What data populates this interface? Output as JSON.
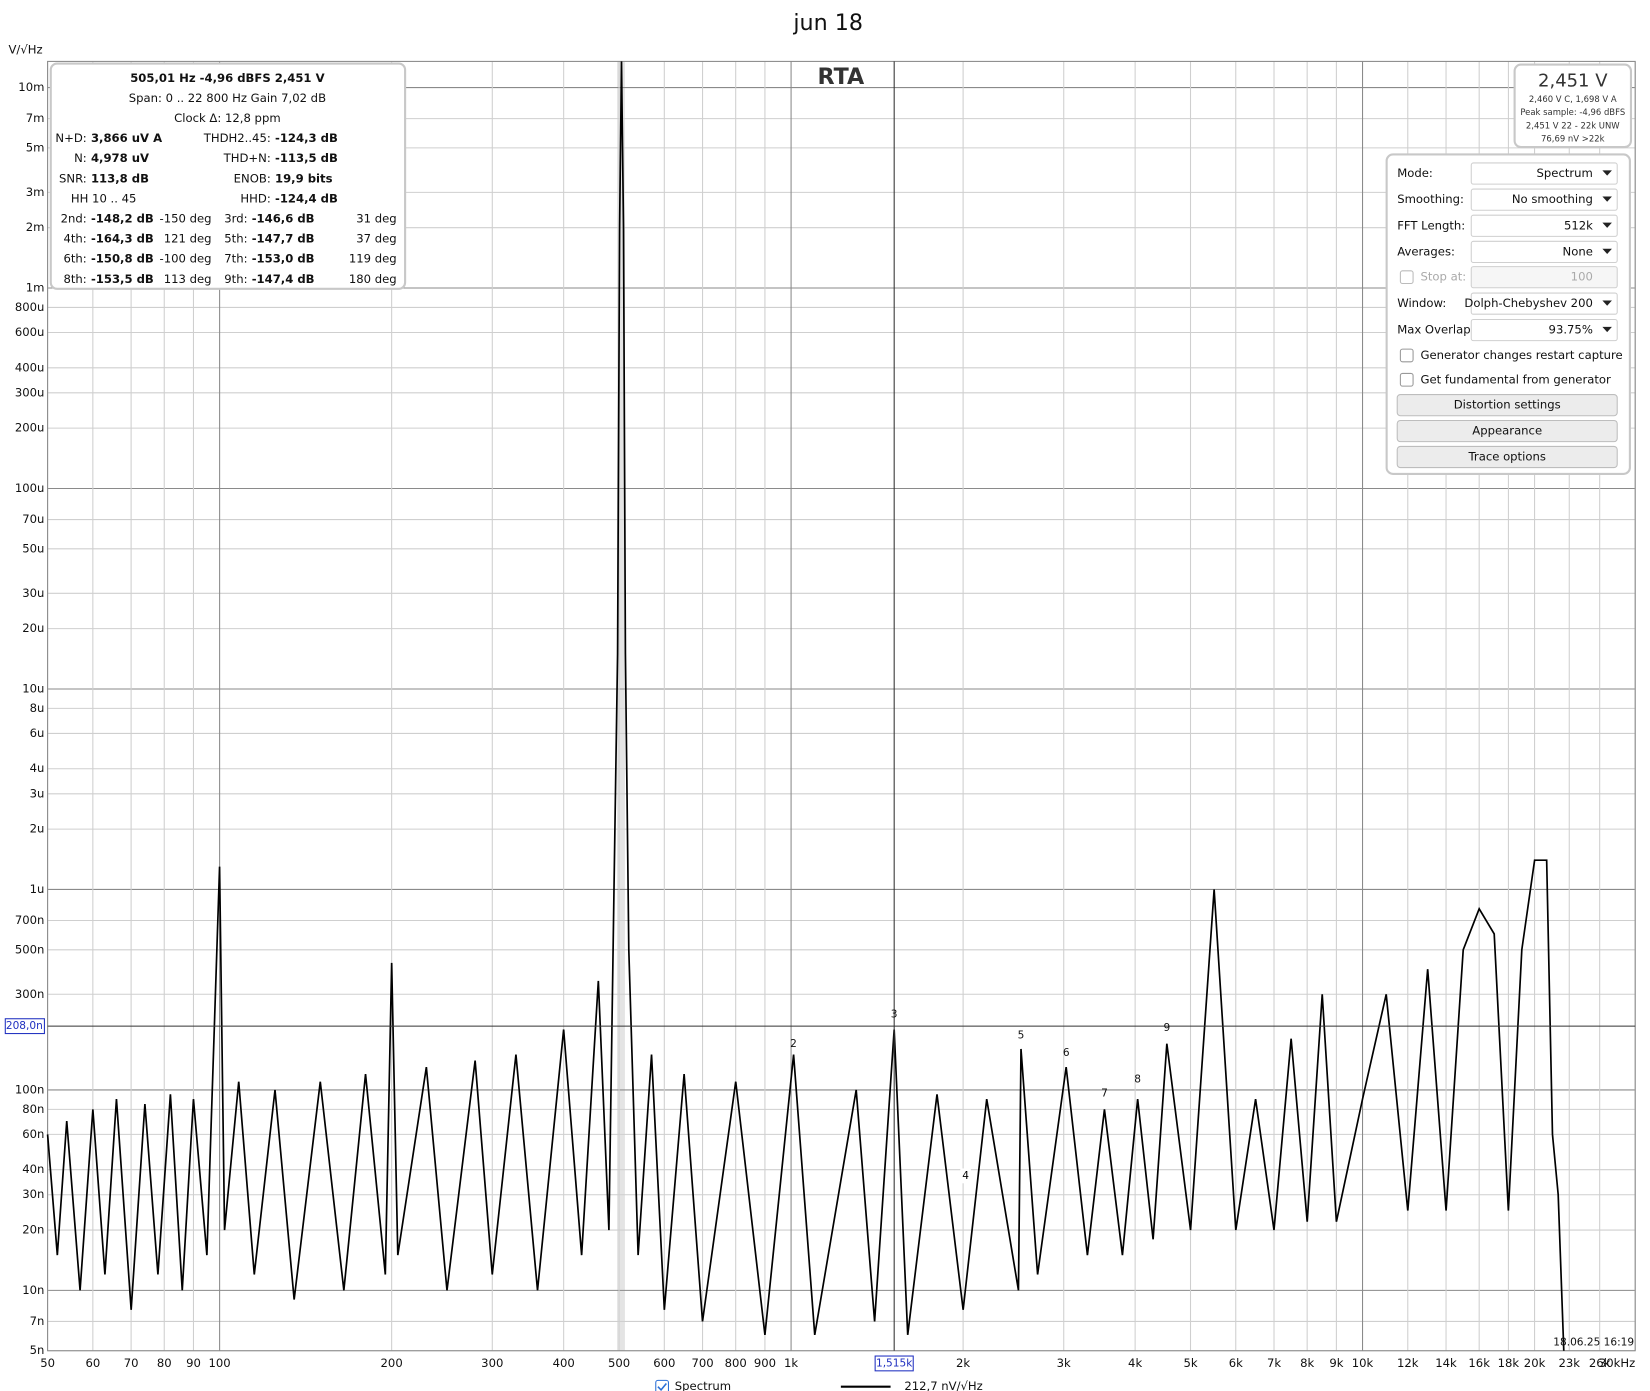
{
  "chart_data": {
    "type": "line",
    "title": "jun 18",
    "annotation": "RTA",
    "y_label": "V/√Hz",
    "x_scale": "log",
    "y_scale": "log",
    "grid": true,
    "xlim": [
      50,
      30000
    ],
    "ylim": [
      5e-09,
      0.0135
    ],
    "xticks": [
      50,
      60,
      70,
      80,
      90,
      100,
      200,
      300,
      400,
      500,
      600,
      700,
      800,
      900,
      {
        "value": 1000,
        "label": "1k"
      },
      {
        "value": 2000,
        "label": "2k"
      },
      {
        "value": 3000,
        "label": "3k"
      },
      {
        "value": 4000,
        "label": "4k"
      },
      {
        "value": 5000,
        "label": "5k"
      },
      {
        "value": 6000,
        "label": "6k"
      },
      {
        "value": 7000,
        "label": "7k"
      },
      {
        "value": 8000,
        "label": "8k"
      },
      {
        "value": 9000,
        "label": "9k"
      },
      {
        "value": 10000,
        "label": "10k"
      },
      {
        "value": 12000,
        "label": "12k"
      },
      {
        "value": 14000,
        "label": "14k"
      },
      {
        "value": 16000,
        "label": "16k"
      },
      {
        "value": 18000,
        "label": "18k"
      },
      {
        "value": 20000,
        "label": "20k"
      },
      {
        "value": 23000,
        "label": "23k"
      },
      {
        "value": 26000,
        "label": "26k"
      },
      {
        "value": 30000,
        "label": "30kHz"
      }
    ],
    "yticks": [
      {
        "value": 0.01,
        "label": "10m"
      },
      {
        "value": 0.007,
        "label": "7m"
      },
      {
        "value": 0.005,
        "label": "5m"
      },
      {
        "value": 0.003,
        "label": "3m"
      },
      {
        "value": 0.002,
        "label": "2m"
      },
      {
        "value": 0.001,
        "label": "1m"
      },
      {
        "value": 0.0008,
        "label": "800u"
      },
      {
        "value": 0.0006,
        "label": "600u"
      },
      {
        "value": 0.0004,
        "label": "400u"
      },
      {
        "value": 0.0003,
        "label": "300u"
      },
      {
        "value": 0.0002,
        "label": "200u"
      },
      {
        "value": 0.0001,
        "label": "100u"
      },
      {
        "value": 7e-05,
        "label": "70u"
      },
      {
        "value": 5e-05,
        "label": "50u"
      },
      {
        "value": 3e-05,
        "label": "30u"
      },
      {
        "value": 2e-05,
        "label": "20u"
      },
      {
        "value": 1e-05,
        "label": "10u"
      },
      {
        "value": 8e-06,
        "label": "8u"
      },
      {
        "value": 6e-06,
        "label": "6u"
      },
      {
        "value": 4e-06,
        "label": "4u"
      },
      {
        "value": 3e-06,
        "label": "3u"
      },
      {
        "value": 2e-06,
        "label": "2u"
      },
      {
        "value": 1e-06,
        "label": "1u"
      },
      {
        "value": 7e-07,
        "label": "700n"
      },
      {
        "value": 5e-07,
        "label": "500n"
      },
      {
        "value": 3e-07,
        "label": "300n"
      },
      {
        "value": 1e-07,
        "label": "100n"
      },
      {
        "value": 8e-08,
        "label": "80n"
      },
      {
        "value": 6e-08,
        "label": "60n"
      },
      {
        "value": 4e-08,
        "label": "40n"
      },
      {
        "value": 3e-08,
        "label": "30n"
      },
      {
        "value": 2e-08,
        "label": "20n"
      },
      {
        "value": 1e-08,
        "label": "10n"
      },
      {
        "value": 7e-09,
        "label": "7n"
      },
      {
        "value": 5e-09,
        "label": "5n"
      }
    ],
    "series": [
      {
        "name": "Spectrum",
        "color": "#000000",
        "x": [
          50,
          52,
          54,
          57,
          60,
          63,
          66,
          70,
          74,
          78,
          82,
          86,
          90,
          95,
          100,
          102,
          108,
          115,
          125,
          135,
          150,
          165,
          180,
          195,
          200,
          205,
          230,
          250,
          280,
          300,
          330,
          360,
          400,
          430,
          460,
          480,
          490,
          497,
          501,
          505,
          509,
          513,
          520,
          540,
          570,
          600,
          650,
          700,
          800,
          900,
          1010,
          1100,
          1300,
          1400,
          1515,
          1600,
          1800,
          2000,
          2200,
          2500,
          2525,
          2700,
          3030,
          3300,
          3535,
          3800,
          4040,
          4300,
          4545,
          5000,
          5500,
          6000,
          6500,
          7000,
          7500,
          8000,
          8500,
          9000,
          10000,
          11000,
          12000,
          13000,
          14000,
          15000,
          16000,
          17000,
          18000,
          19000,
          20000,
          21000,
          21500,
          22000,
          22500
        ],
        "values": [
          6e-08,
          1.5e-08,
          7e-08,
          1e-08,
          8e-08,
          1.2e-08,
          9e-08,
          8e-09,
          8.5e-08,
          1.2e-08,
          9.5e-08,
          1e-08,
          9e-08,
          1.5e-08,
          1.3e-06,
          2e-08,
          1.1e-07,
          1.2e-08,
          1e-07,
          9e-09,
          1.1e-07,
          1e-08,
          1.2e-07,
          1.2e-08,
          4.3e-07,
          1.5e-08,
          1.3e-07,
          1e-08,
          1.4e-07,
          1.2e-08,
          1.5e-07,
          1e-08,
          2e-07,
          1.5e-08,
          3.5e-07,
          2e-08,
          1e-06,
          1.5e-05,
          0.002,
          0.0135,
          0.002,
          1.5e-05,
          5e-07,
          1.5e-08,
          1.5e-07,
          8e-09,
          1.2e-07,
          7e-09,
          1.1e-07,
          6e-09,
          1.5e-07,
          6e-09,
          1e-07,
          7e-09,
          2e-07,
          6e-09,
          9.5e-08,
          8e-09,
          9e-08,
          1e-08,
          1.6e-07,
          1.2e-08,
          1.3e-07,
          1.5e-08,
          8e-08,
          1.5e-08,
          9e-08,
          1.8e-08,
          1.7e-07,
          2e-08,
          1e-06,
          2e-08,
          9e-08,
          2e-08,
          1.8e-07,
          2.2e-08,
          3e-07,
          2.2e-08,
          9e-08,
          3e-07,
          2.5e-08,
          4e-07,
          2.5e-08,
          5e-07,
          8e-07,
          6e-07,
          2.5e-08,
          5e-07,
          1.4e-06,
          1.4e-06,
          6e-08,
          3e-08,
          5e-09
        ]
      }
    ],
    "markers": [
      {
        "label": "2",
        "x": 1010,
        "y": 1.5e-07
      },
      {
        "label": "3",
        "x": 1515,
        "y": 2.1e-07
      },
      {
        "label": "4",
        "x": 2020,
        "y": 3.3e-08
      },
      {
        "label": "5",
        "x": 2525,
        "y": 1.65e-07
      },
      {
        "label": "6",
        "x": 3030,
        "y": 1.35e-07
      },
      {
        "label": "7",
        "x": 3535,
        "y": 8.5e-08
      },
      {
        "label": "8",
        "x": 4040,
        "y": 1e-07
      },
      {
        "label": "9",
        "x": 4545,
        "y": 1.8e-07
      }
    ],
    "cursor_y": {
      "value": 2.08e-07,
      "label": "208,0n"
    },
    "cursor_x": {
      "value": 1515,
      "label": "1,515k"
    },
    "legend_readout": "212,7 nV/√Hz",
    "timestamp": "18.06.25 16:19"
  },
  "info_panel": {
    "header": [
      "505,01 Hz  -4,96 dBFS  2,451 V",
      "Span: 0 .. 22 800 Hz   Gain 7,02 dB",
      "Clock Δ: 12,8 ppm"
    ],
    "stats": [
      {
        "label": "N+D:",
        "value": "3,866 uV A"
      },
      {
        "label": "THDH2..45:",
        "value": "-124,3 dB"
      },
      {
        "label": "N:",
        "value": "4,978 uV"
      },
      {
        "label": "THD+N:",
        "value": "-113,5 dB"
      },
      {
        "label": "SNR:",
        "value": "113,8 dB"
      },
      {
        "label": "ENOB:",
        "value": "19,9 bits"
      },
      {
        "label": "HH 10 .. 45",
        "value": ""
      },
      {
        "label": "HHD:",
        "value": "-124,4 dB"
      }
    ],
    "harmonics": [
      {
        "label": "2nd:",
        "value": "-148,2 dB",
        "phase": "-150 deg"
      },
      {
        "label": "3rd:",
        "value": "-146,6 dB",
        "phase": "31 deg"
      },
      {
        "label": "4th:",
        "value": "-164,3 dB",
        "phase": "121 deg"
      },
      {
        "label": "5th:",
        "value": "-147,7 dB",
        "phase": "37 deg"
      },
      {
        "label": "6th:",
        "value": "-150,8 dB",
        "phase": "-100 deg"
      },
      {
        "label": "7th:",
        "value": "-153,0 dB",
        "phase": "119 deg"
      },
      {
        "label": "8th:",
        "value": "-153,5 dB",
        "phase": "113 deg"
      },
      {
        "label": "9th:",
        "value": "-147,4 dB",
        "phase": "180 deg"
      }
    ]
  },
  "level_panel": {
    "main": "2,451 V",
    "lines": [
      "2,460 V C, 1,698 V A",
      "Peak sample: -4,96 dBFS",
      "2,451 V 22 - 22k UNW",
      "76,69 nV >22k"
    ]
  },
  "controls": {
    "dropdowns": [
      {
        "label": "Mode:",
        "value": "Spectrum"
      },
      {
        "label": "Smoothing:",
        "value": "No smoothing"
      },
      {
        "label": "FFT Length:",
        "value": "512k"
      },
      {
        "label": "Averages:",
        "value": "None"
      }
    ],
    "stop_at": {
      "label": "Stop at:",
      "value": "100"
    },
    "dropdowns2": [
      {
        "label": "Window:",
        "value": "Dolph-Chebyshev 200"
      },
      {
        "label": "Max Overlap:",
        "value": "93.75%"
      }
    ],
    "checkboxes": [
      "Generator changes restart capture",
      "Get fundamental from generator"
    ],
    "buttons": [
      "Distortion settings",
      "Appearance",
      "Trace options"
    ]
  }
}
